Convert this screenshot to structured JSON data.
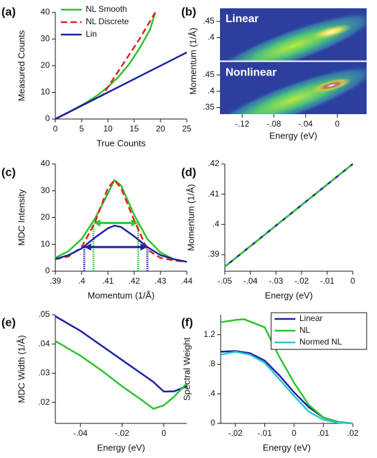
{
  "chart_data": [
    {
      "type": "line",
      "label": "(a)",
      "xlabel": "True Counts",
      "ylabel": "Measured Counts",
      "xlim": [
        0,
        25
      ],
      "xticks": [
        0,
        5,
        10,
        15,
        20,
        25
      ],
      "ylim": [
        0,
        40
      ],
      "yticks": [
        0,
        10,
        20,
        30,
        40
      ],
      "legend": "upper left",
      "series": [
        {
          "name": "NL Smooth",
          "color": "#2bc42b",
          "x": [
            0,
            2,
            4,
            6,
            8,
            10,
            12,
            14,
            16,
            18,
            19
          ],
          "values": [
            0,
            2,
            4.1,
            6.3,
            8.9,
            12,
            15.8,
            20.5,
            26.5,
            33.5,
            40
          ]
        },
        {
          "name": "NL Discrete",
          "color": "#e0201e",
          "style": "dashed",
          "x": [
            0,
            9,
            10,
            13,
            16,
            19
          ],
          "values": [
            0,
            9,
            12,
            21,
            30,
            40
          ]
        },
        {
          "name": "Lin",
          "color": "#1a23a0",
          "x": [
            0,
            25
          ],
          "values": [
            0,
            25
          ]
        }
      ]
    },
    {
      "type": "heatmap",
      "label": "(b)",
      "xlabel": "Energy (eV)",
      "ylabel": "Momentum (1/Å)",
      "xlim": [
        -0.148,
        0.037
      ],
      "xticks": [
        {
          "value": -0.12,
          "label": "-.12"
        },
        {
          "value": -0.08,
          "label": "-.08"
        },
        {
          "value": -0.04,
          "label": "-.04"
        },
        0
      ],
      "panels": [
        {
          "title": "Linear",
          "ylim": [
            0.33,
            0.49
          ],
          "yticks": [
            {
              "value": 0.4,
              "label": ".4"
            },
            {
              "value": 0.45,
              "label": ".45"
            }
          ]
        },
        {
          "title": "Nonlinear",
          "ylim": [
            0.33,
            0.49
          ],
          "yticks": [
            {
              "value": 0.35,
              "label": ".35"
            },
            {
              "value": 0.4,
              "label": ".4"
            },
            {
              "value": 0.45,
              "label": ".45"
            }
          ]
        }
      ]
    },
    {
      "type": "line",
      "label": "(c)",
      "xlabel": "Momentum (1/Å)",
      "ylabel": "MDC Intensity",
      "xlim": [
        0.39,
        0.44
      ],
      "xticks": [
        {
          "value": 0.39,
          "label": ".39"
        },
        {
          "value": 0.4,
          "label": ".4"
        },
        {
          "value": 0.41,
          "label": ".41"
        },
        {
          "value": 0.42,
          "label": ".42"
        },
        {
          "value": 0.43,
          "label": ".43"
        },
        {
          "value": 0.44,
          "label": ".44"
        }
      ],
      "ylim": [
        0,
        40
      ],
      "yticks": [
        0,
        10,
        20,
        30,
        40
      ],
      "series": [
        {
          "color": "#2bc42b",
          "x": [
            0.39,
            0.395,
            0.4,
            0.405,
            0.41,
            0.4125,
            0.415,
            0.42,
            0.425,
            0.43,
            0.435,
            0.44
          ],
          "values": [
            5,
            7.5,
            12,
            19.5,
            29,
            34,
            32,
            21,
            12,
            7,
            4.5,
            3.5
          ]
        },
        {
          "color": "#e0201e",
          "style": "dashed",
          "x": [
            0.39,
            0.395,
            0.4,
            0.405,
            0.41,
            0.4125,
            0.415,
            0.42,
            0.425,
            0.43,
            0.435,
            0.44
          ],
          "values": [
            4.5,
            5.5,
            9,
            18,
            31,
            34,
            31,
            19,
            8,
            5,
            4,
            3.5
          ]
        },
        {
          "color": "#1a23a0",
          "x": [
            0.39,
            0.395,
            0.4,
            0.405,
            0.41,
            0.4125,
            0.415,
            0.42,
            0.425,
            0.43,
            0.435,
            0.44
          ],
          "values": [
            4.5,
            6,
            8.5,
            12.5,
            16,
            17,
            16.5,
            13,
            9,
            6,
            4.5,
            3.5
          ]
        }
      ],
      "arrows": [
        {
          "color": "#2bc42b",
          "x": [
            0.4045,
            0.4215
          ],
          "y": 18
        },
        {
          "color": "#1a23a0",
          "x": [
            0.401,
            0.425
          ],
          "y": 9
        }
      ]
    },
    {
      "type": "line",
      "label": "(d)",
      "xlabel": "Energy (eV)",
      "ylabel": "Momentum (1/Å)",
      "xlim": [
        -0.05,
        0
      ],
      "xticks": [
        {
          "value": -0.05,
          "label": "-.05"
        },
        {
          "value": -0.04,
          "label": "-.04"
        },
        {
          "value": -0.03,
          "label": "-.03"
        },
        {
          "value": -0.02,
          "label": "-.02"
        },
        {
          "value": -0.01,
          "label": "-.01"
        },
        0
      ],
      "ylim": [
        0.3845,
        0.42
      ],
      "yticks": [
        {
          "value": 0.39,
          "label": ".39"
        },
        {
          "value": 0.4,
          "label": ".4"
        },
        {
          "value": 0.41,
          "label": ".41"
        },
        {
          "value": 0.42,
          "label": ".42"
        }
      ],
      "series": [
        {
          "color": "#1a23a0",
          "x": [
            -0.05,
            0
          ],
          "values": [
            0.386,
            0.42
          ]
        },
        {
          "color": "#2bc42b",
          "style": "dashed",
          "x": [
            -0.05,
            0
          ],
          "values": [
            0.386,
            0.42
          ]
        }
      ]
    },
    {
      "type": "line",
      "label": "(e)",
      "xlabel": "Energy (eV)",
      "ylabel": "MDC Width (1/Å)",
      "xlim": [
        -0.052,
        0.011
      ],
      "xticks": [
        {
          "value": -0.04,
          "label": "-.04"
        },
        {
          "value": -0.02,
          "label": "-.02"
        },
        0
      ],
      "ylim": [
        0.0128,
        0.05
      ],
      "yticks": [
        {
          "value": 0.02,
          "label": ".02"
        },
        {
          "value": 0.03,
          "label": ".03"
        },
        {
          "value": 0.04,
          "label": ".04"
        },
        {
          "value": 0.05,
          "label": ".05"
        }
      ],
      "series": [
        {
          "color": "#1a23a0",
          "x": [
            -0.052,
            -0.04,
            -0.03,
            -0.02,
            -0.01,
            -0.005,
            0,
            0.005,
            0.011
          ],
          "values": [
            0.0495,
            0.0445,
            0.0395,
            0.0345,
            0.0295,
            0.027,
            0.0237,
            0.0238,
            0.0255
          ]
        },
        {
          "color": "#2bc42b",
          "x": [
            -0.052,
            -0.04,
            -0.03,
            -0.02,
            -0.01,
            -0.005,
            0,
            0.005,
            0.011
          ],
          "values": [
            0.041,
            0.036,
            0.031,
            0.0255,
            0.0205,
            0.0178,
            0.019,
            0.022,
            0.0265
          ]
        }
      ]
    },
    {
      "type": "line",
      "label": "(f)",
      "xlabel": "Energy (eV)",
      "ylabel": "Spectral Weight",
      "xlim": [
        -0.025,
        0.02
      ],
      "xticks": [
        {
          "value": -0.02,
          "label": "-.02"
        },
        {
          "value": -0.01,
          "label": "-.01"
        },
        0,
        {
          "value": 0.01,
          "label": ".01"
        },
        {
          "value": 0.02,
          "label": ".02"
        }
      ],
      "ylim": [
        0,
        1.47
      ],
      "yticks": [
        0,
        {
          "value": 0.4,
          "label": ".4"
        },
        {
          "value": 0.8,
          "label": ".8"
        },
        1.2
      ],
      "legend": "upper right",
      "series": [
        {
          "name": "Linear",
          "color": "#1a23a0",
          "x": [
            -0.025,
            -0.02,
            -0.015,
            -0.01,
            -0.005,
            0,
            0.005,
            0.01,
            0.015,
            0.02
          ],
          "values": [
            0.97,
            0.98,
            0.95,
            0.85,
            0.65,
            0.42,
            0.22,
            0.08,
            0.02,
            0
          ]
        },
        {
          "name": "NL",
          "color": "#2bc42b",
          "x": [
            -0.025,
            -0.02,
            -0.017,
            -0.01,
            -0.005,
            0,
            0.005,
            0.01,
            0.015,
            0.02
          ],
          "values": [
            1.37,
            1.4,
            1.41,
            1.3,
            0.9,
            0.55,
            0.25,
            0.08,
            0.02,
            0
          ]
        },
        {
          "name": "Normed NL",
          "color": "#26c6d0",
          "x": [
            -0.025,
            -0.02,
            -0.015,
            -0.01,
            -0.005,
            0,
            0.005,
            0.01,
            0.015,
            0.02
          ],
          "values": [
            0.93,
            0.97,
            0.93,
            0.82,
            0.6,
            0.37,
            0.16,
            0.05,
            0.01,
            0
          ]
        }
      ]
    }
  ]
}
